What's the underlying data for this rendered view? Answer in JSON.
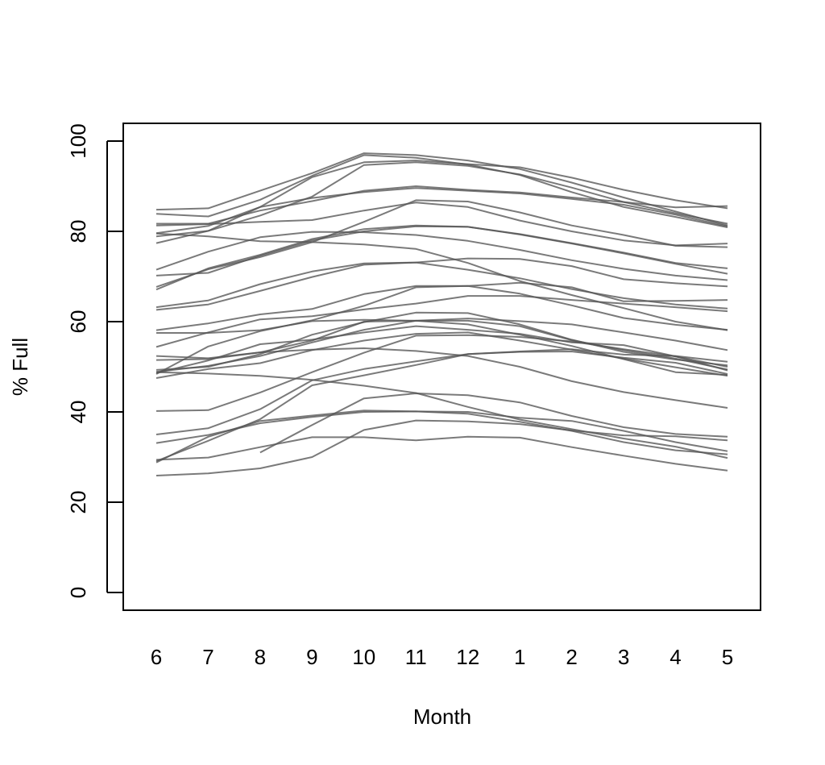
{
  "chart_data": {
    "type": "line",
    "title": "",
    "xlabel": "Month",
    "ylabel": "% Full",
    "categories": [
      "6",
      "7",
      "8",
      "9",
      "10",
      "11",
      "12",
      "1",
      "2",
      "3",
      "4",
      "5"
    ],
    "ylim": [
      0,
      100
    ],
    "yticks": [
      0,
      20,
      40,
      60,
      80,
      100
    ],
    "grid": false,
    "legend": "none",
    "line_color": "#555555",
    "series": [
      {
        "values": [
          84.8,
          85.1,
          89.0,
          92.9,
          97.3,
          96.9,
          95.7,
          93.8,
          90.8,
          87.5,
          84.4,
          81.3
        ]
      },
      {
        "values": [
          83.9,
          83.3,
          87.0,
          92.3,
          96.9,
          96.3,
          94.8,
          92.5,
          88.7,
          85.4,
          83.2,
          80.9
        ]
      },
      {
        "values": [
          81.7,
          81.7,
          84.6,
          86.7,
          89.0,
          90.0,
          89.2,
          88.6,
          87.5,
          86.5,
          85.3,
          85.6
        ]
      },
      {
        "values": [
          81.3,
          81.6,
          82.1,
          82.5,
          84.6,
          86.4,
          85.4,
          82.4,
          80.0,
          78.0,
          76.9,
          77.3
        ]
      },
      {
        "values": [
          79.6,
          81.2,
          85.4,
          92.0,
          95.3,
          95.7,
          94.9,
          94.2,
          91.9,
          89.2,
          86.9,
          85.1
        ]
      },
      {
        "values": [
          78.9,
          80.1,
          85.4,
          87.4,
          88.7,
          89.6,
          89.0,
          88.4,
          87.2,
          85.9,
          83.7,
          81.1
        ]
      },
      {
        "values": [
          77.4,
          80.1,
          83.5,
          87.7,
          94.7,
          95.3,
          94.5,
          92.6,
          89.7,
          86.5,
          84.0,
          81.7
        ]
      },
      {
        "values": [
          79.5,
          78.9,
          77.8,
          77.6,
          77.1,
          76.1,
          73.0,
          69.0,
          65.9,
          63.0,
          60.0,
          58.1
        ]
      },
      {
        "values": [
          71.5,
          75.5,
          78.7,
          79.9,
          79.8,
          79.2,
          77.9,
          75.9,
          73.6,
          71.7,
          70.2,
          69.2
        ]
      },
      {
        "values": [
          70.2,
          70.8,
          74.6,
          78.0,
          80.0,
          81.1,
          81.0,
          79.4,
          77.4,
          75.3,
          73.0,
          71.8
        ]
      },
      {
        "values": [
          67.7,
          71.6,
          74.3,
          77.6,
          82.1,
          86.9,
          86.6,
          84.2,
          81.3,
          79.2,
          76.8,
          76.5
        ]
      },
      {
        "values": [
          67.1,
          71.8,
          74.8,
          78.3,
          80.5,
          81.3,
          81.0,
          79.3,
          77.3,
          75.1,
          72.8,
          70.6
        ]
      },
      {
        "values": [
          63.2,
          64.7,
          68.3,
          71.1,
          72.9,
          73.1,
          74.0,
          73.9,
          72.3,
          69.4,
          68.5,
          67.8
        ]
      },
      {
        "values": [
          62.6,
          63.8,
          66.8,
          69.9,
          72.6,
          73.1,
          71.5,
          69.6,
          67.2,
          65.2,
          63.8,
          62.9
        ]
      },
      {
        "values": [
          58.1,
          59.6,
          61.6,
          62.8,
          66.1,
          67.9,
          67.9,
          68.6,
          67.6,
          64.5,
          64.6,
          64.8
        ]
      },
      {
        "values": [
          57.5,
          57.5,
          58.1,
          60.1,
          60.4,
          60.2,
          60.7,
          60.1,
          59.4,
          57.6,
          55.8,
          53.7
        ]
      },
      {
        "values": [
          54.4,
          57.6,
          60.5,
          61.2,
          62.7,
          64.0,
          65.7,
          65.7,
          64.8,
          64.0,
          63.2,
          62.3
        ]
      },
      {
        "values": [
          52.4,
          51.9,
          53.2,
          55.8,
          60.0,
          60.2,
          60.2,
          59.0,
          55.9,
          53.7,
          51.8,
          49.4
        ]
      },
      {
        "values": [
          51.5,
          51.7,
          53.2,
          53.8,
          54.1,
          53.5,
          52.4,
          50.0,
          46.8,
          44.4,
          42.6,
          40.9
        ]
      },
      {
        "values": [
          49.3,
          50.0,
          52.8,
          57.1,
          59.9,
          62.0,
          61.9,
          59.4,
          56.0,
          53.3,
          51.6,
          50.3
        ]
      },
      {
        "values": [
          48.9,
          50.2,
          52.4,
          55.4,
          58.2,
          60.2,
          59.4,
          57.1,
          54.6,
          51.7,
          48.8,
          48.2
        ]
      },
      {
        "values": [
          48.8,
          48.5,
          48.0,
          47.1,
          45.8,
          44.2,
          41.1,
          38.3,
          36.2,
          34.1,
          32.3,
          29.8
        ]
      },
      {
        "values": [
          48.6,
          51.4,
          55.0,
          56.0,
          57.6,
          59.0,
          58.2,
          57.3,
          55.4,
          54.8,
          52.3,
          49.2
        ]
      },
      {
        "values": [
          48.4,
          54.5,
          57.9,
          60.3,
          63.5,
          67.6,
          67.9,
          66.2,
          63.6,
          60.8,
          59.3,
          58.2
        ]
      },
      {
        "values": [
          47.5,
          49.5,
          50.8,
          53.7,
          55.8,
          57.3,
          57.6,
          55.8,
          53.8,
          51.8,
          49.9,
          48.0
        ]
      },
      {
        "values": [
          40.2,
          40.4,
          44.3,
          48.8,
          53.1,
          56.9,
          57.0,
          56.6,
          55.6,
          53.9,
          52.3,
          50.0
        ]
      },
      {
        "values": [
          35.0,
          36.4,
          40.6,
          47.0,
          49.5,
          51.2,
          52.8,
          53.4,
          53.9,
          52.7,
          52.4,
          51.1
        ]
      },
      {
        "values": [
          33.1,
          34.9,
          37.5,
          38.9,
          40.0,
          40.1,
          39.6,
          37.8,
          35.8,
          33.3,
          31.5,
          30.6
        ]
      },
      {
        "values": [
          29.1,
          33.6,
          38.4,
          45.9,
          48.1,
          50.4,
          52.8,
          53.3,
          53.4,
          52.0,
          50.9,
          48.4
        ]
      },
      {
        "values": [
          28.8,
          34.5,
          38.0,
          39.2,
          40.3,
          40.1,
          40.0,
          38.7,
          38.0,
          35.8,
          33.3,
          31.3
        ]
      },
      {
        "values": [
          29.4,
          29.9,
          32.2,
          34.4,
          34.4,
          33.7,
          34.5,
          34.3,
          32.2,
          30.3,
          28.5,
          27.0
        ]
      },
      {
        "values": [
          25.9,
          26.4,
          27.5,
          30.0,
          36.0,
          38.1,
          37.9,
          37.3,
          35.9,
          34.8,
          34.6,
          33.7
        ]
      },
      {
        "values": [
          null,
          null,
          31.0,
          37.1,
          43.0,
          44.1,
          43.7,
          42.1,
          39.1,
          36.6,
          35.1,
          34.5
        ]
      }
    ]
  }
}
